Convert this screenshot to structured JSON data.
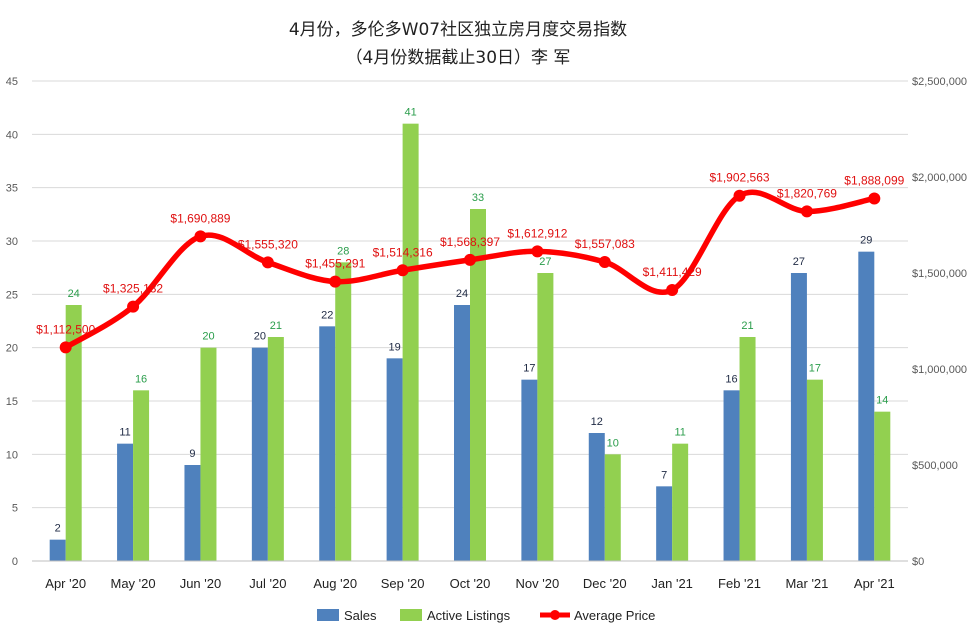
{
  "chart_data": {
    "type": "bar",
    "title_lines": [
      "4月份，多伦多W07社区独立房月度交易指数",
      "（4月份数据截止30日）李 军"
    ],
    "categories": [
      "Apr '20",
      "May '20",
      "Jun '20",
      "Jul '20",
      "Aug '20",
      "Sep '20",
      "Oct '20",
      "Nov '20",
      "Dec '20",
      "Jan '21",
      "Feb '21",
      "Mar '21",
      "Apr '21"
    ],
    "series": [
      {
        "name": "Sales",
        "kind": "bar",
        "axis": "left",
        "color": "#4f81bd",
        "values": [
          2,
          11,
          9,
          20,
          22,
          19,
          24,
          17,
          12,
          7,
          16,
          27,
          29
        ],
        "labels": [
          "2",
          "11",
          "9",
          "20",
          "22",
          "19",
          "24",
          "17",
          "12",
          "7",
          "16",
          "27",
          "29"
        ]
      },
      {
        "name": "Active Listings",
        "kind": "bar",
        "axis": "left",
        "color": "#92d050",
        "values": [
          24,
          16,
          20,
          21,
          28,
          41,
          33,
          27,
          10,
          11,
          21,
          17,
          14
        ],
        "labels": [
          "24",
          "16",
          "20",
          "21",
          "28",
          "41",
          "33",
          "27",
          "10",
          "11",
          "21",
          "17",
          "14"
        ]
      },
      {
        "name": "Average Price",
        "kind": "line",
        "axis": "right",
        "color": "#ff0000",
        "values": [
          1112500,
          1325132,
          1690889,
          1555320,
          1455291,
          1514316,
          1568397,
          1612912,
          1557083,
          1411429,
          1902563,
          1820769,
          1888099
        ],
        "labels": [
          "$1,112,500",
          "$1,325,132",
          "$1,690,889",
          "$1,555,320",
          "$1,455,291",
          "$1,514,316",
          "$1,568,397",
          "$1,612,912",
          "$1,557,083",
          "$1,411,429",
          "$1,902,563",
          "$1,820,769",
          "$1,888,099"
        ]
      }
    ],
    "y_left": {
      "min": 0,
      "max": 45,
      "step": 5,
      "ticks": [
        "0",
        "5",
        "10",
        "15",
        "20",
        "25",
        "30",
        "35",
        "40",
        "45"
      ]
    },
    "y_right": {
      "min": 0,
      "max": 2500000,
      "step": 500000,
      "ticks": [
        "$0",
        "$500,000",
        "$1,000,000",
        "$1,500,000",
        "$2,000,000",
        "$2,500,000"
      ]
    },
    "legend": {
      "position": "bottom",
      "entries": [
        "Sales",
        "Active Listings",
        "Average Price"
      ]
    },
    "grid": true
  }
}
